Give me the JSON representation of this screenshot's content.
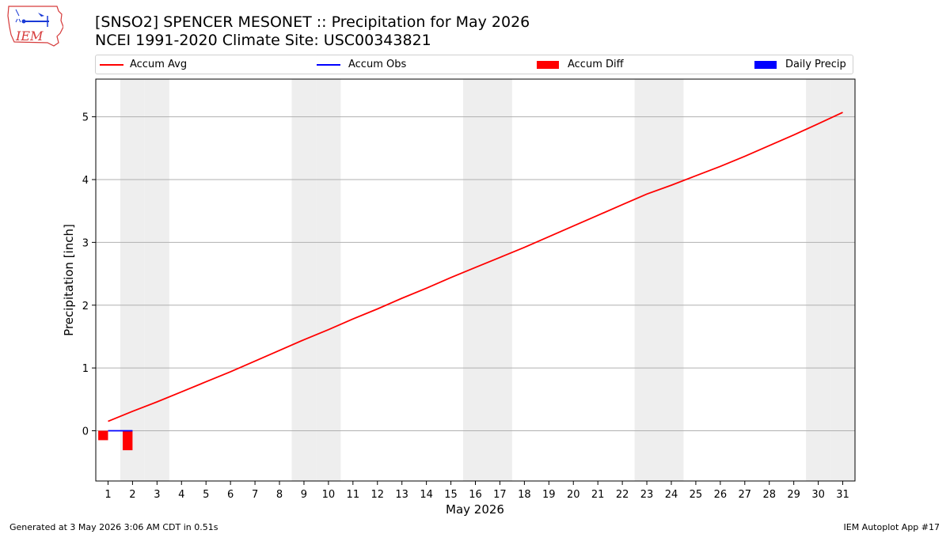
{
  "title_line1": "[SNSO2] SPENCER MESONET :: Precipitation for May 2026",
  "title_line2": "NCEI 1991-2020 Climate Site: USC00343821",
  "logo_text": "IEM",
  "legend": [
    {
      "label": "Accum Avg",
      "color": "#ff0000",
      "kind": "line"
    },
    {
      "label": "Accum Obs",
      "color": "#0000ff",
      "kind": "line"
    },
    {
      "label": "Accum Diff",
      "color": "#ff0000",
      "kind": "box"
    },
    {
      "label": "Daily Precip",
      "color": "#0000ff",
      "kind": "box"
    }
  ],
  "footer_left": "Generated at 3 May 2026 3:06 AM CDT in 0.51s",
  "footer_right": "IEM Autoplot App #17",
  "chart_data": {
    "type": "line",
    "xlabel": "May 2026",
    "ylabel": "Precipitation [inch]",
    "xlim": [
      0.5,
      31.5
    ],
    "ylim": [
      -0.8,
      5.6
    ],
    "yticks": [
      0,
      1,
      2,
      3,
      4,
      5
    ],
    "x": [
      1,
      2,
      3,
      4,
      5,
      6,
      7,
      8,
      9,
      10,
      11,
      12,
      13,
      14,
      15,
      16,
      17,
      18,
      19,
      20,
      21,
      22,
      23,
      24,
      25,
      26,
      27,
      28,
      29,
      30,
      31
    ],
    "weekend_days": [
      2,
      3,
      9,
      10,
      16,
      17,
      23,
      24,
      30,
      31
    ],
    "grid": "horizontal",
    "series": [
      {
        "name": "Accum Avg",
        "type": "line",
        "color": "#ff0000",
        "x": [
          1,
          2,
          3,
          4,
          5,
          6,
          7,
          8,
          9,
          10,
          11,
          12,
          13,
          14,
          15,
          16,
          17,
          18,
          19,
          20,
          21,
          22,
          23,
          24,
          25,
          26,
          27,
          28,
          29,
          30,
          31
        ],
        "values": [
          0.15,
          0.31,
          0.46,
          0.62,
          0.78,
          0.94,
          1.11,
          1.28,
          1.45,
          1.61,
          1.78,
          1.94,
          2.11,
          2.27,
          2.44,
          2.6,
          2.76,
          2.92,
          3.09,
          3.26,
          3.43,
          3.6,
          3.77,
          3.91,
          4.06,
          4.21,
          4.37,
          4.54,
          4.71,
          4.89,
          5.07
        ]
      },
      {
        "name": "Accum Obs",
        "type": "line",
        "color": "#0000ff",
        "x": [
          1,
          2
        ],
        "values": [
          0.0,
          0.0
        ]
      },
      {
        "name": "Accum Diff",
        "type": "bar",
        "color": "#ff0000",
        "x": [
          1,
          2
        ],
        "values": [
          -0.15,
          -0.31
        ]
      },
      {
        "name": "Daily Precip",
        "type": "bar",
        "color": "#0000ff",
        "x": [
          1,
          2
        ],
        "values": [
          0.0,
          0.0
        ]
      }
    ]
  }
}
